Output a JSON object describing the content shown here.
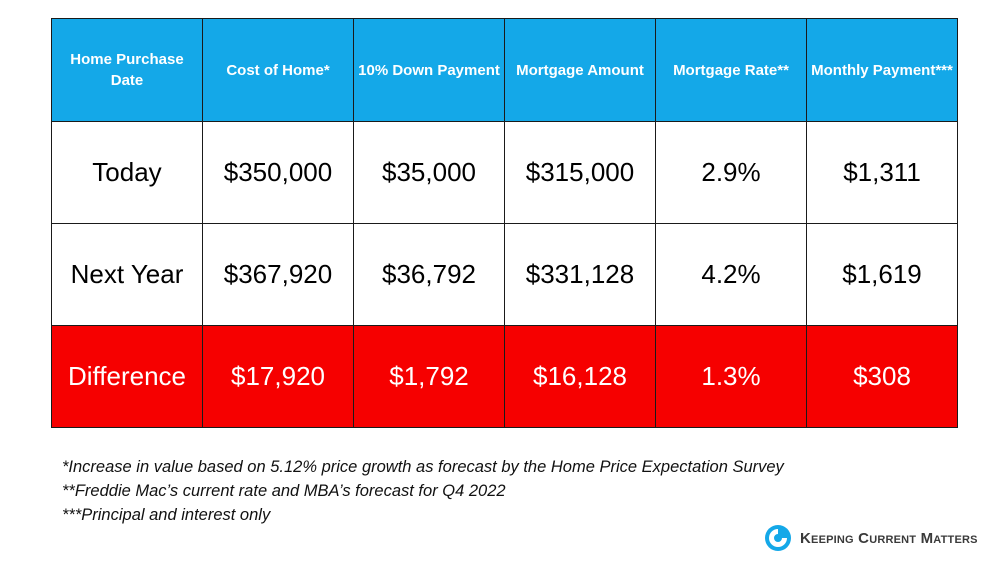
{
  "table": {
    "headers": [
      "Home Purchase Date",
      "Cost of Home*",
      "10% Down Payment",
      "Mortgage Amount",
      "Mortgage Rate**",
      "Monthly Payment***"
    ],
    "rows": [
      [
        "Today",
        "$350,000",
        "$35,000",
        "$315,000",
        "2.9%",
        "$1,311"
      ],
      [
        "Next Year",
        "$367,920",
        "$36,792",
        "$331,128",
        "4.2%",
        "$1,619"
      ],
      [
        "Difference",
        "$17,920",
        "$1,792",
        "$16,128",
        "1.3%",
        "$308"
      ]
    ]
  },
  "footnotes": [
    "*Increase in value based on 5.12% price growth as forecast by the Home Price Expectation Survey",
    "**Freddie Mac’s current rate and MBA’s forecast for Q4 2022",
    "***Principal and interest only"
  ],
  "brand": {
    "name": "Keeping Current Matters",
    "logo_icon": "kcm-swirl-icon"
  },
  "colors": {
    "header": "#14a8e8",
    "difference_row": "#f60000"
  }
}
